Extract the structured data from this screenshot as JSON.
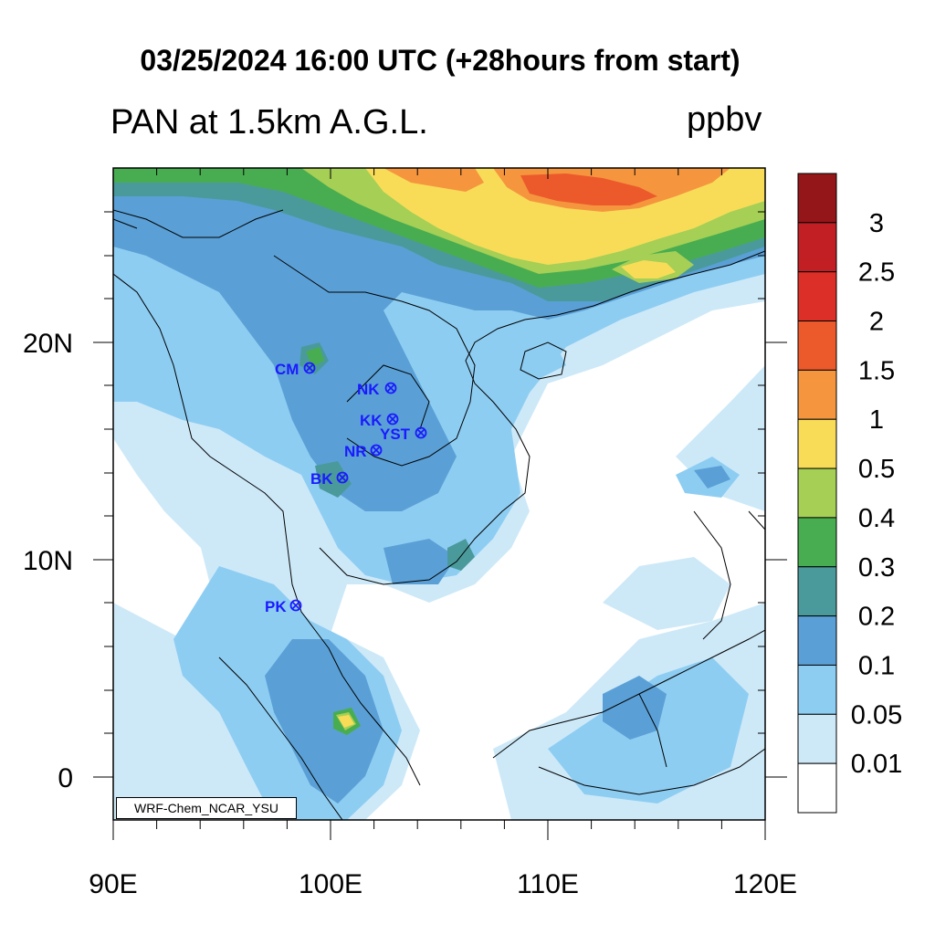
{
  "title": "03/25/2024 16:00 UTC (+28hours from start)",
  "left_string": "PAN at 1.5km A.G.L.",
  "right_string": "ppbv",
  "credit": "WRF-Chem_NCAR_YSU",
  "x_ticks": [
    "90E",
    "100E",
    "110E",
    "120E"
  ],
  "y_ticks": [
    "20N",
    "10N",
    "0"
  ],
  "colorbar": {
    "levels": [
      "0.01",
      "0.05",
      "0.1",
      "0.2",
      "0.3",
      "0.4",
      "0.5",
      "1",
      "1.5",
      "2",
      "2.5",
      "3"
    ],
    "colors": [
      "#ffffff",
      "#cde9f8",
      "#8ecdf2",
      "#5aa0d6",
      "#4a9a9c",
      "#48ad50",
      "#a5cf55",
      "#f8dc58",
      "#f5963e",
      "#ec5a2c",
      "#dc2f28",
      "#c11f24",
      "#941619"
    ]
  },
  "stations": [
    {
      "name": "CM"
    },
    {
      "name": "NK"
    },
    {
      "name": "KK"
    },
    {
      "name": "YST"
    },
    {
      "name": "NR"
    },
    {
      "name": "BK"
    },
    {
      "name": "PK"
    }
  ]
}
